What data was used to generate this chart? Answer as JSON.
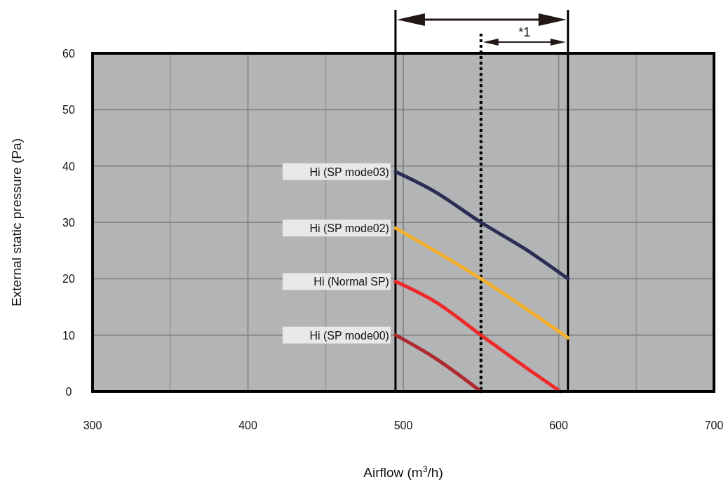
{
  "chart_data": {
    "type": "line",
    "xlabel": "Airflow (m$^{3}$/h)",
    "ylabel": "External static pressure (Pa)",
    "xlim": [
      300,
      700
    ],
    "ylim": [
      0,
      60
    ],
    "xticks": [
      300,
      {
        "value": 350,
        "label": null
      },
      400,
      {
        "value": 450,
        "label": null
      },
      500,
      {
        "value": 550,
        "label": null
      },
      600,
      {
        "value": 650,
        "label": null
      },
      700
    ],
    "yticks": [
      0,
      10,
      20,
      30,
      40,
      50,
      60
    ],
    "grid": true,
    "series": [
      {
        "name": "Hi (SP mode03)",
        "color": "#2b2d52",
        "x": [
          495,
          520,
          550,
          580,
          606
        ],
        "values": [
          39,
          35.5,
          30,
          25,
          20
        ]
      },
      {
        "name": "Hi (SP mode02)",
        "color": "#f4b12f",
        "x": [
          495,
          550,
          606
        ],
        "values": [
          29,
          20,
          9.5
        ]
      },
      {
        "name": "Hi (Normal SP)",
        "color": "#ee2a2a",
        "x": [
          495,
          520,
          550,
          575,
          601
        ],
        "values": [
          19.5,
          16,
          10,
          5,
          0
        ]
      },
      {
        "name": "Hi (SP mode00)",
        "color": "#ad2a2e",
        "x": [
          495,
          520,
          550
        ],
        "values": [
          10,
          6,
          0
        ]
      }
    ],
    "ref_lines": [
      {
        "axis": "x",
        "value": 495,
        "color": "#000000",
        "line_style": "solid"
      },
      {
        "axis": "x",
        "value": 606,
        "color": "#000000",
        "line_style": "solid"
      },
      {
        "axis": "x",
        "value": 550,
        "color": "#000000",
        "line_style": "dotted"
      }
    ],
    "annotations": [
      "*1"
    ]
  }
}
